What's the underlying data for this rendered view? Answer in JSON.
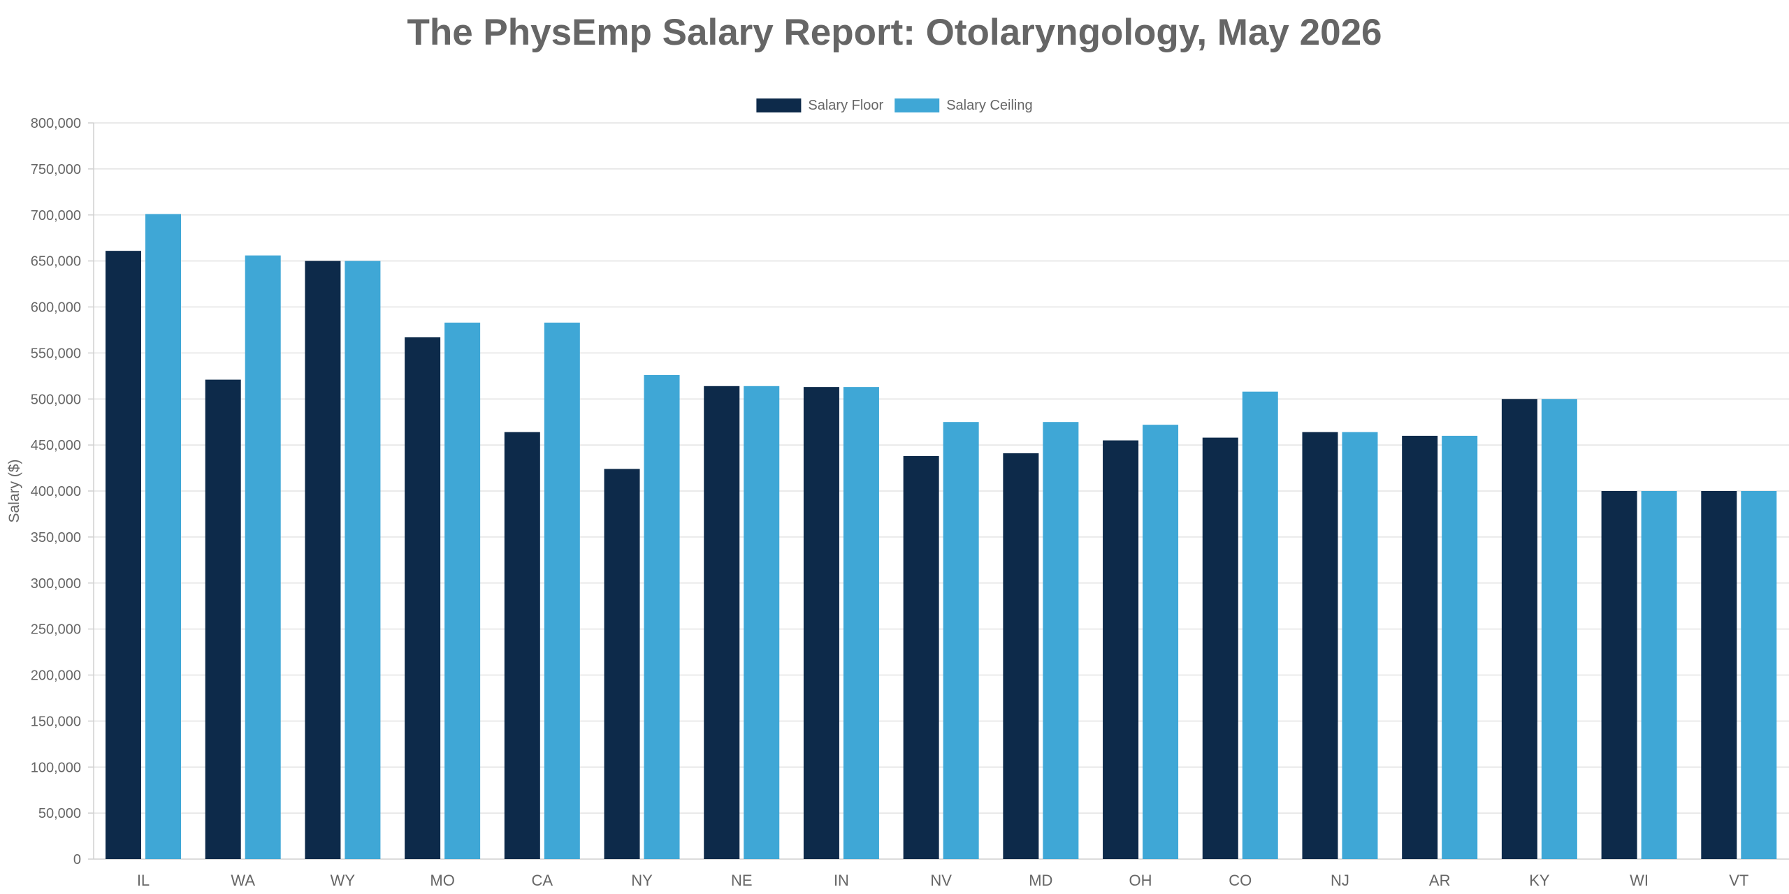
{
  "chart_data": {
    "type": "bar",
    "title": "The PhysEmp Salary Report: Otolaryngology, May 2026",
    "xlabel": "",
    "ylabel": "Salary ($)",
    "ylim": [
      0,
      800000
    ],
    "y_ticks": [
      "0",
      "50,000",
      "100,000",
      "150,000",
      "200,000",
      "250,000",
      "300,000",
      "350,000",
      "400,000",
      "450,000",
      "500,000",
      "550,000",
      "600,000",
      "650,000",
      "700,000",
      "750,000",
      "800,000"
    ],
    "y_tick_step": 50000,
    "grid": true,
    "legend_position": "top-center",
    "categories": [
      "IL",
      "WA",
      "WY",
      "MO",
      "CA",
      "NY",
      "NE",
      "IN",
      "NV",
      "MD",
      "OH",
      "CO",
      "NJ",
      "AR",
      "KY",
      "WI",
      "VT"
    ],
    "series": [
      {
        "name": "Salary Floor",
        "color": "#0d2a4a",
        "values": [
          661000,
          521000,
          650000,
          567000,
          464000,
          424000,
          514000,
          513000,
          438000,
          441000,
          455000,
          458000,
          464000,
          460000,
          500000,
          400000,
          400000
        ]
      },
      {
        "name": "Salary Ceiling",
        "color": "#3fa7d6",
        "values": [
          701000,
          656000,
          650000,
          583000,
          583000,
          526000,
          514000,
          513000,
          475000,
          475000,
          472000,
          508000,
          464000,
          460000,
          500000,
          400000,
          400000
        ]
      }
    ]
  }
}
